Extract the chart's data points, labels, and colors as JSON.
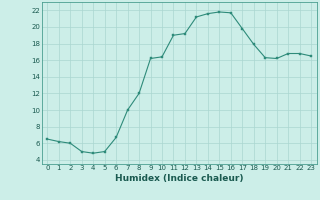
{
  "x": [
    0,
    1,
    2,
    3,
    4,
    5,
    6,
    7,
    8,
    9,
    10,
    11,
    12,
    13,
    14,
    15,
    16,
    17,
    18,
    19,
    20,
    21,
    22,
    23
  ],
  "y": [
    6.5,
    6.2,
    6.0,
    5.0,
    4.8,
    5.0,
    6.7,
    10.0,
    12.0,
    16.2,
    16.4,
    19.0,
    19.2,
    21.2,
    21.6,
    21.8,
    21.7,
    19.8,
    17.9,
    16.3,
    16.2,
    16.8,
    16.8,
    16.5
  ],
  "line_color": "#2e8b7a",
  "marker": "s",
  "marker_size": 2.0,
  "bg_color": "#cceee8",
  "grid_color": "#aad6d0",
  "xlabel": "Humidex (Indice chaleur)",
  "xlim": [
    -0.5,
    23.5
  ],
  "ylim": [
    3.5,
    23
  ],
  "yticks": [
    4,
    6,
    8,
    10,
    12,
    14,
    16,
    18,
    20,
    22
  ],
  "xticks": [
    0,
    1,
    2,
    3,
    4,
    5,
    6,
    7,
    8,
    9,
    10,
    11,
    12,
    13,
    14,
    15,
    16,
    17,
    18,
    19,
    20,
    21,
    22,
    23
  ],
  "tick_fontsize": 5.0,
  "label_fontsize": 6.5,
  "spine_color": "#4a9e90"
}
